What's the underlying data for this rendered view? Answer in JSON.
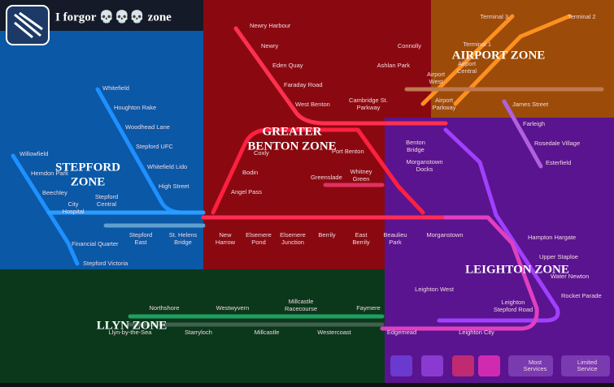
{
  "header": {
    "title": "I forgor 💀💀💀 zone"
  },
  "zones": [
    {
      "label": [
        "STEPFORD",
        "ZONE"
      ]
    },
    {
      "label": [
        "GREATER",
        "BENTON ZONE"
      ]
    },
    {
      "label": [
        "AIRPORT ZONE"
      ]
    },
    {
      "label": [
        "LEIGHTON ZONE"
      ]
    },
    {
      "label": [
        "LLYN ZONE"
      ]
    }
  ],
  "stations": [
    {
      "label": [
        "Whitefield"
      ]
    },
    {
      "label": [
        "Houghton Rake"
      ]
    },
    {
      "label": [
        "Woodhead Lane"
      ]
    },
    {
      "label": [
        "Stepford UFC"
      ]
    },
    {
      "label": [
        "Whitefield Lido"
      ]
    },
    {
      "label": [
        "High Street"
      ]
    },
    {
      "label": [
        "Willowfield"
      ]
    },
    {
      "label": [
        "Hemdon Park"
      ]
    },
    {
      "label": [
        "Beechley"
      ]
    },
    {
      "label": [
        "City",
        "Hospital"
      ]
    },
    {
      "label": [
        "Stepford",
        "Central"
      ]
    },
    {
      "label": [
        "Financial Quarter"
      ]
    },
    {
      "label": [
        "Stepford Victoria"
      ]
    },
    {
      "label": [
        "Stepford",
        "East"
      ]
    },
    {
      "label": [
        "St. Helens",
        "Bridge"
      ]
    },
    {
      "label": [
        "Newry Harbour"
      ]
    },
    {
      "label": [
        "Newry"
      ]
    },
    {
      "label": [
        "Eden Quay"
      ]
    },
    {
      "label": [
        "Faraday Road"
      ]
    },
    {
      "label": [
        "West Benton"
      ]
    },
    {
      "label": [
        "Cambridge St.",
        "Parkway"
      ]
    },
    {
      "label": [
        "Connolly"
      ]
    },
    {
      "label": [
        "Ashlan Park"
      ]
    },
    {
      "label": [
        "Coxly"
      ]
    },
    {
      "label": [
        "Bodin"
      ]
    },
    {
      "label": [
        "Angel Pass"
      ]
    },
    {
      "label": [
        "Port Benton"
      ]
    },
    {
      "label": [
        "Greenslade"
      ]
    },
    {
      "label": [
        "Whitney",
        "Green"
      ]
    },
    {
      "label": [
        "Benton",
        "Bridge"
      ]
    },
    {
      "label": [
        "Morganstown",
        "Docks"
      ]
    },
    {
      "label": [
        "New",
        "Harrow"
      ]
    },
    {
      "label": [
        "Elsemere",
        "Pond"
      ]
    },
    {
      "label": [
        "Elsemere",
        "Junction"
      ]
    },
    {
      "label": [
        "Berrily"
      ]
    },
    {
      "label": [
        "East",
        "Berrily"
      ]
    },
    {
      "label": [
        "Beaulieu",
        "Park"
      ]
    },
    {
      "label": [
        "Morganstown"
      ]
    },
    {
      "label": [
        "Terminal 3"
      ]
    },
    {
      "label": [
        "Terminal 2"
      ]
    },
    {
      "label": [
        "Terminal 1"
      ]
    },
    {
      "label": [
        "Airport",
        "Central"
      ]
    },
    {
      "label": [
        "Airport",
        "West"
      ]
    },
    {
      "label": [
        "Airport",
        "Parkway"
      ]
    },
    {
      "label": [
        "James Street"
      ]
    },
    {
      "label": [
        "Farleigh"
      ]
    },
    {
      "label": [
        "Rosedale Village"
      ]
    },
    {
      "label": [
        "Esterfield"
      ]
    },
    {
      "label": [
        "Hampton Hargate"
      ]
    },
    {
      "label": [
        "Upper Staploe"
      ]
    },
    {
      "label": [
        "Water Newton"
      ]
    },
    {
      "label": [
        "Rocket Parade"
      ]
    },
    {
      "label": [
        "Leighton West"
      ]
    },
    {
      "label": [
        "Leighton",
        "Stepford Road"
      ]
    },
    {
      "label": [
        "Edgemead"
      ]
    },
    {
      "label": [
        "Leighton City"
      ]
    },
    {
      "label": [
        "Northshore"
      ]
    },
    {
      "label": [
        "Westwyvern"
      ]
    },
    {
      "label": [
        "Millcastle",
        "Racecourse"
      ]
    },
    {
      "label": [
        "Faymere"
      ]
    },
    {
      "label": [
        "Llyn-by-the-Sea"
      ]
    },
    {
      "label": [
        "Starryloch"
      ]
    },
    {
      "label": [
        "Millcastle"
      ]
    },
    {
      "label": [
        "Westercoast"
      ]
    }
  ],
  "filters": [
    {
      "label": [
        "Most",
        "Services"
      ]
    },
    {
      "label": [
        "Limited",
        "Service"
      ]
    }
  ]
}
